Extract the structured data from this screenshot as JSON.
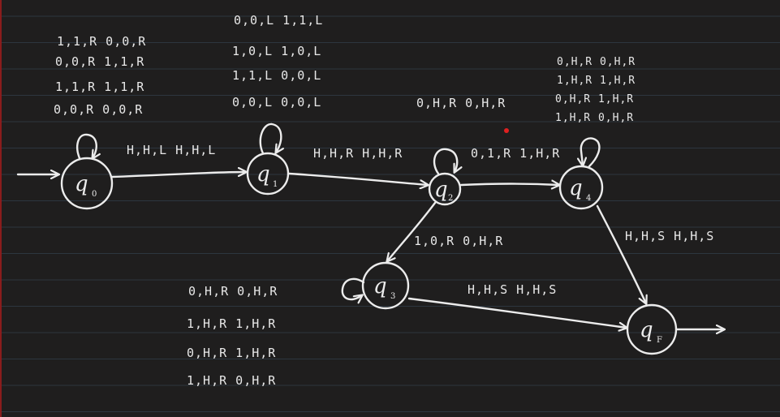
{
  "colors": {
    "background": "#1f1e1e",
    "ruled_lines": "#3a4a5a",
    "ink": "#ececec",
    "margin_line": "#b02020",
    "red_dot": "#e02020"
  },
  "states": [
    {
      "id": "q0",
      "letter": "q",
      "sub": "0"
    },
    {
      "id": "q1",
      "letter": "q",
      "sub": "1"
    },
    {
      "id": "q2",
      "letter": "q",
      "sub": "2"
    },
    {
      "id": "q3",
      "letter": "q",
      "sub": "3"
    },
    {
      "id": "q4",
      "letter": "q",
      "sub": "4"
    },
    {
      "id": "qf",
      "letter": "q",
      "sub": "F"
    }
  ],
  "labels": {
    "q0_loop": [
      "1,1,R 0,0,R",
      "0,0,R 1,1,R",
      "1,1,R 1,1,R",
      "0,0,R 0,0,R"
    ],
    "q0_q1": "H,H,L H,H,L",
    "q1_loop": [
      "0,0,L 1,1,L",
      "1,0,L 1,0,L",
      "1,1,L 0,0,L",
      "0,0,L 0,0,L"
    ],
    "q1_q2": "H,H,R H,H,R",
    "q2_loop": "0,H,R 0,H,R",
    "q2_q4": "0,1,R 1,H,R",
    "q4_loop": [
      "0,H,R 0,H,R",
      "1,H,R 1,H,R",
      "0,H,R 1,H,R",
      "1,H,R 0,H,R"
    ],
    "q2_q3": "1,0,R  0,H,R",
    "q3_loop": [
      "0,H,R  0,H,R",
      "1,H,R  1,H,R",
      "0,H,R  1,H,R",
      "1,H,R  0,H,R"
    ],
    "q3_qf": "H,H,S H,H,S",
    "q4_qf": "H,H,S H,H,S"
  }
}
